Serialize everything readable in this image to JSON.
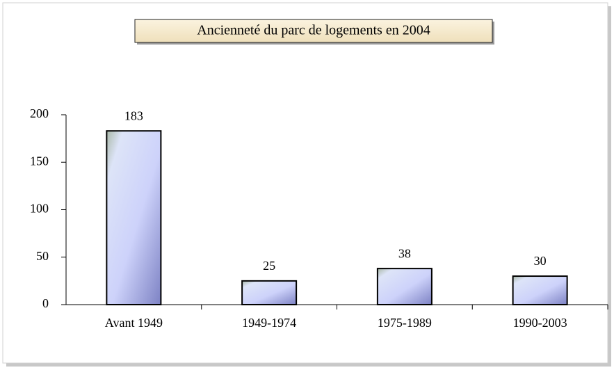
{
  "chart_data": {
    "type": "bar",
    "title": "Ancienneté du parc de logements en 2004",
    "categories": [
      "Avant 1949",
      "1949-1974",
      "1975-1989",
      "1990-2003"
    ],
    "values": [
      183,
      25,
      38,
      30
    ],
    "color": "#c8ccf4",
    "ylim": [
      0,
      200
    ],
    "yticks": [
      0,
      50,
      100,
      150,
      200
    ],
    "grid": false
  }
}
